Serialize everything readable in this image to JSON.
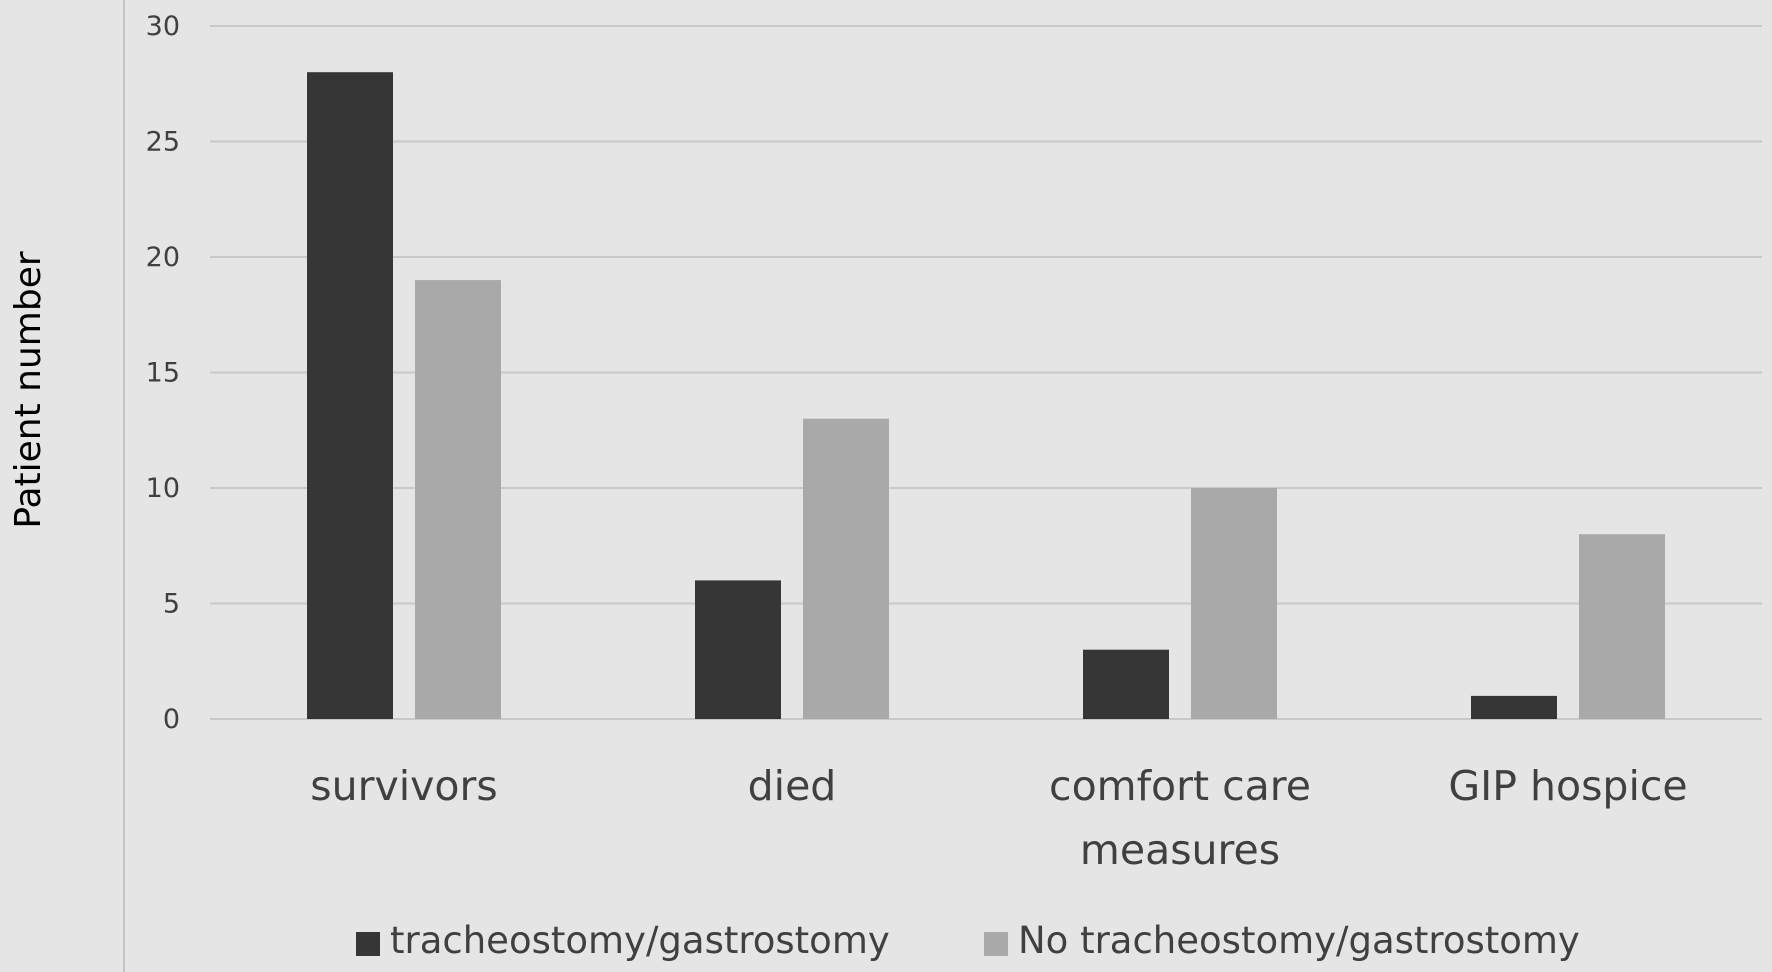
{
  "chart_data": {
    "type": "bar",
    "categories": [
      "survivors",
      "died",
      "comfort care measures",
      "GIP hospice"
    ],
    "category_lines": [
      [
        "survivors"
      ],
      [
        "died"
      ],
      [
        "comfort care",
        "measures"
      ],
      [
        "GIP hospice"
      ]
    ],
    "series": [
      {
        "name": "tracheostomy/gastrostomy",
        "values": [
          28,
          6,
          3,
          1
        ],
        "color": "#363636"
      },
      {
        "name": "No tracheostomy/gastrostomy",
        "values": [
          19,
          13,
          10,
          8
        ],
        "color": "#a9a9a9"
      }
    ],
    "title": "",
    "xlabel": "",
    "ylabel": "Patient number",
    "ylim": [
      0,
      30
    ],
    "yticks": [
      0,
      5,
      10,
      15,
      20,
      25,
      30
    ],
    "grid": true,
    "gridline_color": "#c8c8c8",
    "background_color": "#e5e5e5",
    "legend_position": "bottom"
  }
}
